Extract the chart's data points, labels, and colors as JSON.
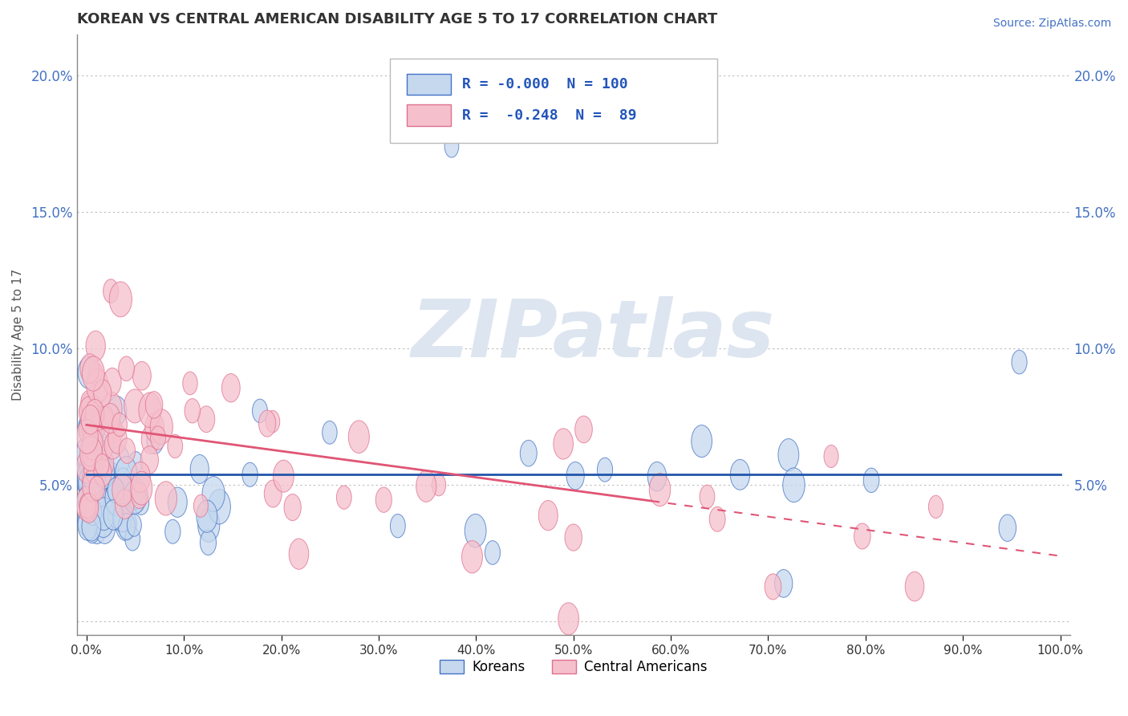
{
  "title": "KOREAN VS CENTRAL AMERICAN DISABILITY AGE 5 TO 17 CORRELATION CHART",
  "source_text": "Source: ZipAtlas.com",
  "ylabel": "Disability Age 5 to 17",
  "xlim": [
    -0.01,
    1.01
  ],
  "ylim": [
    -0.005,
    0.215
  ],
  "xticks": [
    0.0,
    0.1,
    0.2,
    0.3,
    0.4,
    0.5,
    0.6,
    0.7,
    0.8,
    0.9,
    1.0
  ],
  "xticklabels": [
    "0.0%",
    "10.0%",
    "20.0%",
    "30.0%",
    "40.0%",
    "50.0%",
    "60.0%",
    "70.0%",
    "80.0%",
    "90.0%",
    "100.0%"
  ],
  "yticks": [
    0.0,
    0.05,
    0.1,
    0.15,
    0.2
  ],
  "yticklabels": [
    "",
    "5.0%",
    "10.0%",
    "15.0%",
    "20.0%"
  ],
  "korean_fill_color": "#c5d8ee",
  "korean_edge_color": "#4472c4",
  "central_fill_color": "#f5c0cc",
  "central_edge_color": "#e07090",
  "korean_line_color": "#2255aa",
  "central_line_color": "#e05575",
  "watermark_color": "#dde5f0",
  "legend_r_korean": "-0.000",
  "legend_n_korean": "100",
  "legend_r_central": "-0.248",
  "legend_n_central": "89",
  "korean_intercept": 0.054,
  "central_intercept": 0.072,
  "central_slope": -0.048,
  "background_color": "#ffffff",
  "grid_color": "#cccccc",
  "title_color": "#333333",
  "axis_color": "#888888",
  "tick_color": "#4472c4",
  "watermark_text": "ZIPatlas"
}
